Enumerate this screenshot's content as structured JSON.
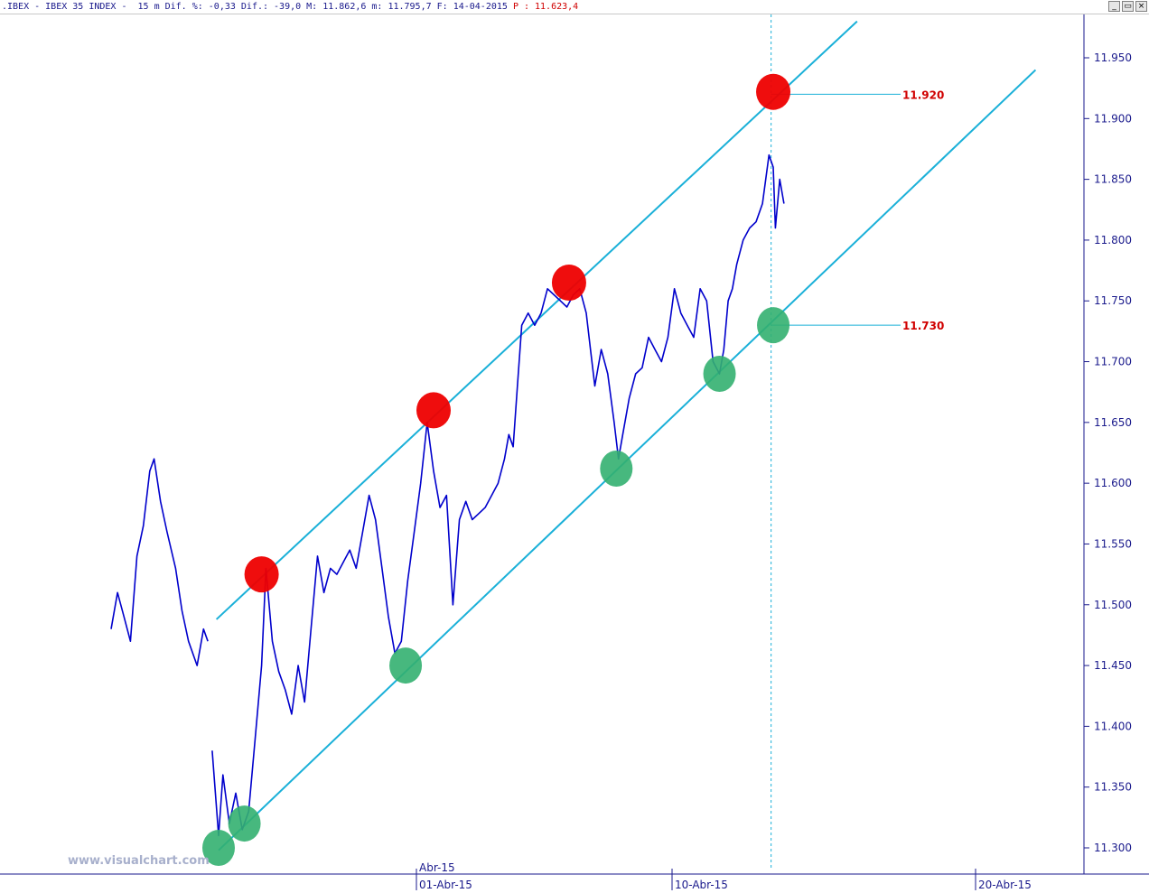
{
  "window": {
    "title_prefix": ".IBEX - IBEX 35 INDEX -  15 m Dif. %: -0,33 Dif.: -39,0 M: 11.862,6 m: 11.795,7 F: 14-04-2015 ",
    "title_price": "P : 11.623,4",
    "controls": {
      "minimize": "_",
      "restore": "▭",
      "close": "×"
    }
  },
  "watermark": "www.visualchart.com",
  "colors": {
    "price_line": "#0000cc",
    "channel_line": "#1ab0d8",
    "axis": "#1a1a8c",
    "resistance_marker": "#ee0000",
    "support_marker": "#33b070",
    "level_label": "#d00000"
  },
  "chart_data": {
    "type": "line",
    "instrument": "IBEX 35 INDEX",
    "interval": "15 m",
    "title": "",
    "xlabel": "",
    "ylabel": "",
    "ylim": [
      11280,
      11990
    ],
    "y_ticks": [
      11300,
      11350,
      11400,
      11450,
      11500,
      11550,
      11600,
      11650,
      11700,
      11750,
      11800,
      11850,
      11900,
      11950
    ],
    "y_tick_labels": [
      "11.300",
      "11.350",
      "11.400",
      "11.450",
      "11.500",
      "11.550",
      "11.600",
      "11.650",
      "11.700",
      "11.750",
      "11.800",
      "11.850",
      "11.900",
      "11.950"
    ],
    "x_range_bars": [
      0,
      310
    ],
    "x_ticks": [
      {
        "bar": 142,
        "label": "01-Abr-15"
      },
      {
        "bar": 261,
        "label": "10-Abr-15"
      },
      {
        "bar": 402,
        "label": "20-Abr-15"
      }
    ],
    "month_marker": {
      "bar": 142,
      "label": "Abr-15"
    },
    "price_path": [
      [
        0,
        11480
      ],
      [
        3,
        11510
      ],
      [
        6,
        11490
      ],
      [
        9,
        11470
      ],
      [
        12,
        11540
      ],
      [
        15,
        11565
      ],
      [
        18,
        11610
      ],
      [
        20,
        11620
      ],
      [
        23,
        11585
      ],
      [
        26,
        11560
      ],
      [
        30,
        11530
      ],
      [
        33,
        11495
      ],
      [
        36,
        11470
      ],
      [
        40,
        11450
      ],
      [
        43,
        11480
      ],
      [
        45,
        11470
      ],
      [
        47,
        11380
      ],
      [
        50,
        11310
      ],
      [
        52,
        11360
      ],
      [
        55,
        11320
      ],
      [
        58,
        11345
      ],
      [
        61,
        11315
      ],
      [
        64,
        11330
      ],
      [
        67,
        11390
      ],
      [
        70,
        11450
      ],
      [
        72,
        11530
      ],
      [
        75,
        11470
      ],
      [
        78,
        11445
      ],
      [
        81,
        11430
      ],
      [
        84,
        11410
      ],
      [
        87,
        11450
      ],
      [
        90,
        11420
      ],
      [
        93,
        11480
      ],
      [
        96,
        11540
      ],
      [
        99,
        11510
      ],
      [
        102,
        11530
      ],
      [
        105,
        11525
      ],
      [
        108,
        11535
      ],
      [
        111,
        11545
      ],
      [
        114,
        11530
      ],
      [
        117,
        11560
      ],
      [
        120,
        11590
      ],
      [
        123,
        11570
      ],
      [
        126,
        11530
      ],
      [
        129,
        11490
      ],
      [
        132,
        11460
      ],
      [
        135,
        11470
      ],
      [
        138,
        11520
      ],
      [
        141,
        11560
      ],
      [
        144,
        11600
      ],
      [
        147,
        11650
      ],
      [
        150,
        11610
      ],
      [
        153,
        11580
      ],
      [
        156,
        11590
      ],
      [
        159,
        11500
      ],
      [
        162,
        11570
      ],
      [
        165,
        11585
      ],
      [
        168,
        11570
      ],
      [
        171,
        11575
      ],
      [
        174,
        11580
      ],
      [
        177,
        11590
      ],
      [
        180,
        11600
      ],
      [
        183,
        11620
      ],
      [
        185,
        11640
      ],
      [
        187,
        11630
      ],
      [
        189,
        11680
      ],
      [
        191,
        11730
      ],
      [
        194,
        11740
      ],
      [
        197,
        11730
      ],
      [
        200,
        11740
      ],
      [
        203,
        11760
      ],
      [
        206,
        11755
      ],
      [
        209,
        11750
      ],
      [
        212,
        11745
      ],
      [
        215,
        11755
      ],
      [
        218,
        11760
      ],
      [
        221,
        11740
      ],
      [
        223,
        11710
      ],
      [
        225,
        11680
      ],
      [
        228,
        11710
      ],
      [
        231,
        11690
      ],
      [
        234,
        11650
      ],
      [
        236,
        11620
      ],
      [
        238,
        11640
      ],
      [
        241,
        11670
      ],
      [
        244,
        11690
      ],
      [
        247,
        11695
      ],
      [
        250,
        11720
      ],
      [
        253,
        11710
      ],
      [
        256,
        11700
      ],
      [
        259,
        11720
      ],
      [
        262,
        11760
      ],
      [
        265,
        11740
      ],
      [
        268,
        11730
      ],
      [
        271,
        11720
      ],
      [
        274,
        11760
      ],
      [
        277,
        11750
      ],
      [
        280,
        11700
      ],
      [
        283,
        11690
      ],
      [
        285,
        11710
      ],
      [
        287,
        11750
      ],
      [
        289,
        11760
      ],
      [
        291,
        11780
      ],
      [
        294,
        11800
      ],
      [
        297,
        11810
      ],
      [
        300,
        11815
      ],
      [
        303,
        11830
      ],
      [
        306,
        11870
      ],
      [
        308,
        11860
      ],
      [
        309,
        11810
      ],
      [
        311,
        11850
      ],
      [
        313,
        11830
      ]
    ],
    "channel": {
      "upper": {
        "start": [
          49,
          11488
        ],
        "end": [
          347,
          11980
        ]
      },
      "lower": {
        "start": [
          50,
          11298
        ],
        "end": [
          430,
          11940
        ]
      }
    },
    "current_bar_marker": 307,
    "resistance_touches": [
      [
        70,
        11525
      ],
      [
        150,
        11660
      ],
      [
        213,
        11765
      ],
      [
        308,
        11922
      ]
    ],
    "support_touches": [
      [
        50,
        11300
      ],
      [
        62,
        11320
      ],
      [
        137,
        11450
      ],
      [
        235,
        11612
      ],
      [
        283,
        11690
      ],
      [
        308,
        11730
      ]
    ],
    "levels": [
      {
        "value": 11920,
        "label": "11.920"
      },
      {
        "value": 11730,
        "label": "11.730"
      }
    ]
  }
}
